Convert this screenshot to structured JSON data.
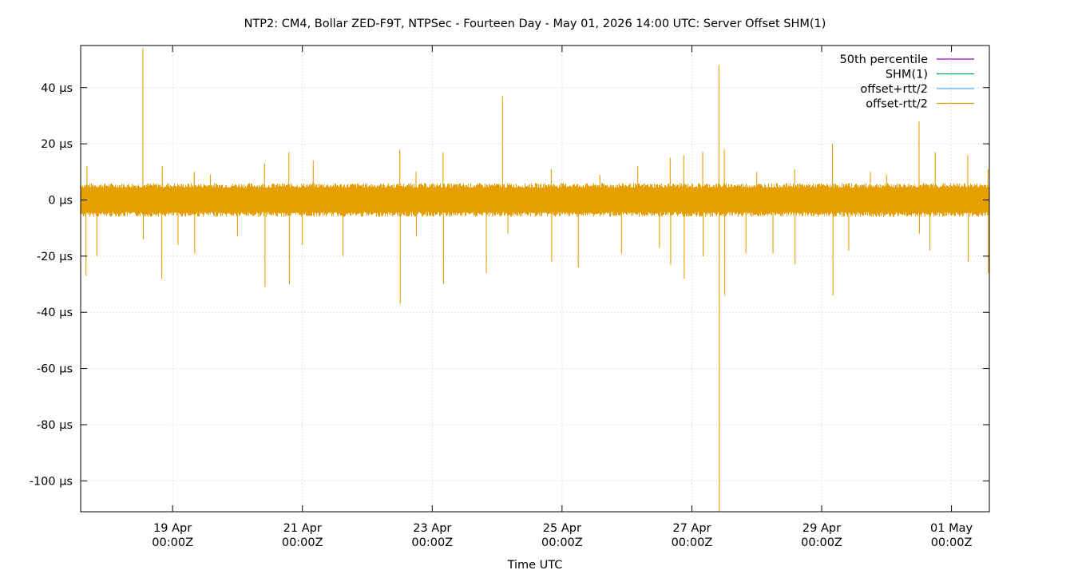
{
  "chart_data": {
    "type": "line",
    "title": "NTP2: CM4, Bollar ZED-F9T, NTPSec - Fourteen Day - May 01, 2026 14:00 UTC: Server Offset SHM(1)",
    "xlabel": "Time UTC",
    "ylabel": "",
    "grid": true,
    "legend_position": "top-right",
    "x_range": [
      "2026-04-17T14:00Z",
      "2026-05-01T14:00Z"
    ],
    "ylim": [
      -111,
      55
    ],
    "y_unit": "µs",
    "y_ticks": [
      {
        "value": 40,
        "label": "40 µs"
      },
      {
        "value": 20,
        "label": "20 µs"
      },
      {
        "value": 0,
        "label": "0 µs"
      },
      {
        "value": -20,
        "label": "-20 µs"
      },
      {
        "value": -40,
        "label": "-40 µs"
      },
      {
        "value": -60,
        "label": "-60 µs"
      },
      {
        "value": -80,
        "label": "-80 µs"
      },
      {
        "value": -100,
        "label": "-100 µs"
      }
    ],
    "x_ticks": [
      {
        "time": "2026-04-19T00:00Z",
        "label_line1": "19 Apr",
        "label_line2": "00:00Z"
      },
      {
        "time": "2026-04-21T00:00Z",
        "label_line1": "21 Apr",
        "label_line2": "00:00Z"
      },
      {
        "time": "2026-04-23T00:00Z",
        "label_line1": "23 Apr",
        "label_line2": "00:00Z"
      },
      {
        "time": "2026-04-25T00:00Z",
        "label_line1": "25 Apr",
        "label_line2": "00:00Z"
      },
      {
        "time": "2026-04-27T00:00Z",
        "label_line1": "27 Apr",
        "label_line2": "00:00Z"
      },
      {
        "time": "2026-04-29T00:00Z",
        "label_line1": "29 Apr",
        "label_line2": "00:00Z"
      },
      {
        "time": "2026-05-01T00:00Z",
        "label_line1": "01 May",
        "label_line2": "00:00Z"
      }
    ],
    "series": [
      {
        "name": "50th percentile",
        "color": "#9400d3",
        "values": []
      },
      {
        "name": "SHM(1)",
        "color": "#009e73",
        "values": []
      },
      {
        "name": "offset+rtt/2",
        "color": "#56b4e9",
        "values": []
      },
      {
        "name": "offset-rtt/2",
        "color": "#e69f00",
        "noise_band": {
          "upper": 6,
          "lower": -6
        },
        "spikes": [
          {
            "time": "2026-04-17T16:00Z",
            "value": -27
          },
          {
            "time": "2026-04-17T16:20Z",
            "value": 12
          },
          {
            "time": "2026-04-17T20:00Z",
            "value": -20
          },
          {
            "time": "2026-04-18T13:00Z",
            "value": 54
          },
          {
            "time": "2026-04-18T13:10Z",
            "value": -14
          },
          {
            "time": "2026-04-18T20:00Z",
            "value": -28
          },
          {
            "time": "2026-04-18T20:10Z",
            "value": 12
          },
          {
            "time": "2026-04-19T02:00Z",
            "value": -16
          },
          {
            "time": "2026-04-19T08:00Z",
            "value": 10
          },
          {
            "time": "2026-04-19T08:10Z",
            "value": -19
          },
          {
            "time": "2026-04-19T14:00Z",
            "value": 9
          },
          {
            "time": "2026-04-20T00:00Z",
            "value": -13
          },
          {
            "time": "2026-04-20T10:00Z",
            "value": 13
          },
          {
            "time": "2026-04-20T10:10Z",
            "value": -31
          },
          {
            "time": "2026-04-20T19:00Z",
            "value": 17
          },
          {
            "time": "2026-04-20T19:10Z",
            "value": -30
          },
          {
            "time": "2026-04-21T00:00Z",
            "value": -16
          },
          {
            "time": "2026-04-21T04:00Z",
            "value": 14
          },
          {
            "time": "2026-04-21T15:00Z",
            "value": -20
          },
          {
            "time": "2026-04-22T12:00Z",
            "value": 18
          },
          {
            "time": "2026-04-22T12:10Z",
            "value": -37
          },
          {
            "time": "2026-04-22T18:00Z",
            "value": 10
          },
          {
            "time": "2026-04-22T18:10Z",
            "value": -13
          },
          {
            "time": "2026-04-23T04:00Z",
            "value": 17
          },
          {
            "time": "2026-04-23T04:10Z",
            "value": -30
          },
          {
            "time": "2026-04-23T20:00Z",
            "value": -26
          },
          {
            "time": "2026-04-24T02:00Z",
            "value": 37
          },
          {
            "time": "2026-04-24T04:00Z",
            "value": -12
          },
          {
            "time": "2026-04-24T20:00Z",
            "value": 11
          },
          {
            "time": "2026-04-24T20:10Z",
            "value": -22
          },
          {
            "time": "2026-04-25T06:00Z",
            "value": -24
          },
          {
            "time": "2026-04-25T14:00Z",
            "value": 9
          },
          {
            "time": "2026-04-25T22:00Z",
            "value": -19
          },
          {
            "time": "2026-04-26T04:00Z",
            "value": 12
          },
          {
            "time": "2026-04-26T12:00Z",
            "value": -17
          },
          {
            "time": "2026-04-26T16:00Z",
            "value": 15
          },
          {
            "time": "2026-04-26T16:10Z",
            "value": -23
          },
          {
            "time": "2026-04-26T21:00Z",
            "value": 16
          },
          {
            "time": "2026-04-26T21:10Z",
            "value": -28
          },
          {
            "time": "2026-04-27T04:00Z",
            "value": 17
          },
          {
            "time": "2026-04-27T04:10Z",
            "value": -20
          },
          {
            "time": "2026-04-27T10:00Z",
            "value": 48
          },
          {
            "time": "2026-04-27T10:10Z",
            "value": -111
          },
          {
            "time": "2026-04-27T12:00Z",
            "value": 18
          },
          {
            "time": "2026-04-27T12:10Z",
            "value": -34
          },
          {
            "time": "2026-04-27T20:00Z",
            "value": -19
          },
          {
            "time": "2026-04-28T00:00Z",
            "value": 10
          },
          {
            "time": "2026-04-28T06:00Z",
            "value": -19
          },
          {
            "time": "2026-04-28T14:00Z",
            "value": 11
          },
          {
            "time": "2026-04-28T14:10Z",
            "value": -23
          },
          {
            "time": "2026-04-29T04:00Z",
            "value": 20
          },
          {
            "time": "2026-04-29T04:10Z",
            "value": -34
          },
          {
            "time": "2026-04-29T10:00Z",
            "value": -18
          },
          {
            "time": "2026-04-29T18:00Z",
            "value": 10
          },
          {
            "time": "2026-04-30T00:00Z",
            "value": 9
          },
          {
            "time": "2026-04-30T12:00Z",
            "value": 28
          },
          {
            "time": "2026-04-30T12:10Z",
            "value": -12
          },
          {
            "time": "2026-04-30T16:00Z",
            "value": -18
          },
          {
            "time": "2026-04-30T18:00Z",
            "value": 17
          },
          {
            "time": "2026-05-01T06:00Z",
            "value": 16
          },
          {
            "time": "2026-05-01T06:10Z",
            "value": -22
          },
          {
            "time": "2026-05-01T13:30Z",
            "value": 11
          },
          {
            "time": "2026-05-01T13:40Z",
            "value": -26
          }
        ]
      }
    ]
  }
}
